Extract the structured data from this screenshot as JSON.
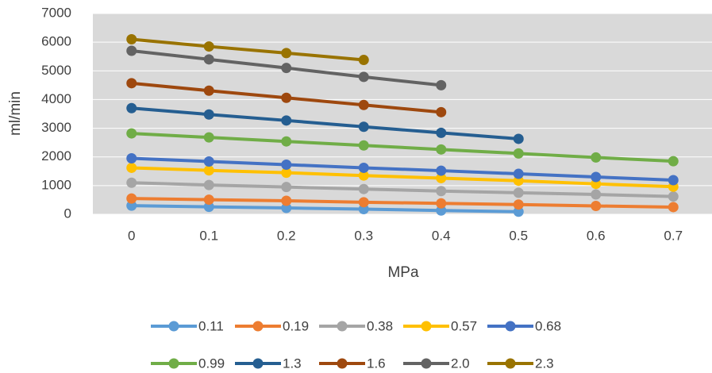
{
  "chart_data": {
    "type": "line",
    "xlabel": "MPa",
    "ylabel": "ml/min",
    "categories": [
      "0",
      "0.1",
      "0.2",
      "0.3",
      "0.4",
      "0.5",
      "0.6",
      "0.7"
    ],
    "ylim": [
      0,
      7000
    ],
    "yticks": [
      0,
      1000,
      2000,
      3000,
      4000,
      5000,
      6000,
      7000
    ],
    "grid": true,
    "legend": "bottom",
    "series": [
      {
        "name": "0.11",
        "color": "#5b9bd5",
        "values": [
          300,
          260,
          220,
          180,
          130,
          90,
          null,
          null
        ]
      },
      {
        "name": "0.19",
        "color": "#ed7d31",
        "values": [
          550,
          510,
          470,
          420,
          380,
          340,
          290,
          250
        ]
      },
      {
        "name": "0.38",
        "color": "#a5a5a5",
        "values": [
          1100,
          1020,
          950,
          880,
          810,
          750,
          690,
          620
        ]
      },
      {
        "name": "0.57",
        "color": "#ffc000",
        "values": [
          1620,
          1530,
          1450,
          1350,
          1260,
          1170,
          1060,
          960
        ]
      },
      {
        "name": "0.68",
        "color": "#4472c4",
        "values": [
          1950,
          1840,
          1730,
          1620,
          1520,
          1410,
          1300,
          1190
        ]
      },
      {
        "name": "0.99",
        "color": "#70ad47",
        "values": [
          2820,
          2680,
          2540,
          2400,
          2260,
          2120,
          1980,
          1850
        ]
      },
      {
        "name": "1.3",
        "color": "#255e91",
        "values": [
          3700,
          3480,
          3270,
          3050,
          2840,
          2630,
          null,
          null
        ]
      },
      {
        "name": "1.6",
        "color": "#9e480e",
        "values": [
          4570,
          4310,
          4060,
          3810,
          3560,
          null,
          null,
          null
        ]
      },
      {
        "name": "2.0",
        "color": "#636363",
        "values": [
          5700,
          5400,
          5100,
          4790,
          4500,
          null,
          null,
          null
        ]
      },
      {
        "name": "2.3",
        "color": "#997300",
        "values": [
          6100,
          5850,
          5620,
          5380,
          null,
          null,
          null,
          null
        ]
      }
    ]
  }
}
